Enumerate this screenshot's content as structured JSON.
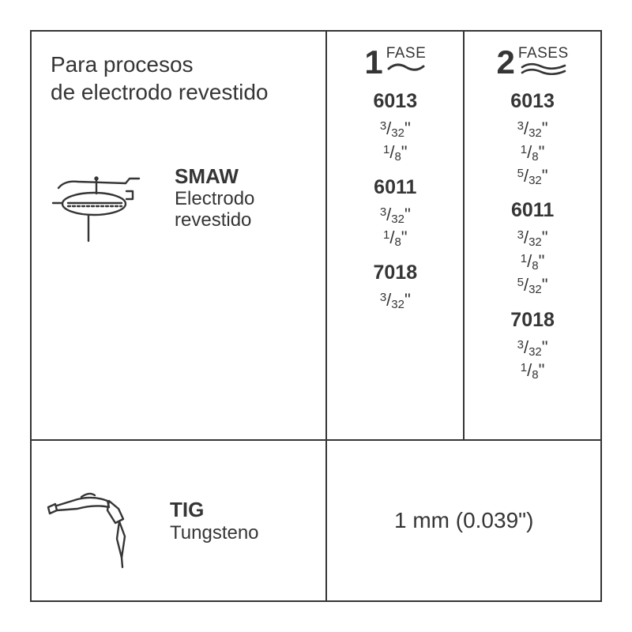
{
  "title_line1": "Para procesos",
  "title_line2": "de electrodo revestido",
  "smaw": {
    "abbr": "SMAW",
    "desc1": "Electrodo",
    "desc2": "revestido"
  },
  "tig": {
    "abbr": "TIG",
    "desc": "Tungsteno",
    "spec": "1 mm (0.039\")"
  },
  "phase1": {
    "num": "1",
    "label": "FASE",
    "groups": [
      {
        "code": "6013",
        "sizes": [
          "3/32\"",
          "1/8\""
        ]
      },
      {
        "code": "6011",
        "sizes": [
          "3/32\"",
          "1/8\""
        ]
      },
      {
        "code": "7018",
        "sizes": [
          "3/32\""
        ]
      }
    ]
  },
  "phase2": {
    "num": "2",
    "label": "FASES",
    "groups": [
      {
        "code": "6013",
        "sizes": [
          "3/32\"",
          "1/8\"",
          "5/32\""
        ]
      },
      {
        "code": "6011",
        "sizes": [
          "3/32\"",
          "1/8\"",
          "5/32\""
        ]
      },
      {
        "code": "7018",
        "sizes": [
          "3/32\"",
          "1/8\""
        ]
      }
    ]
  },
  "colors": {
    "border": "#353535",
    "text": "#353535",
    "bg": "#ffffff"
  }
}
